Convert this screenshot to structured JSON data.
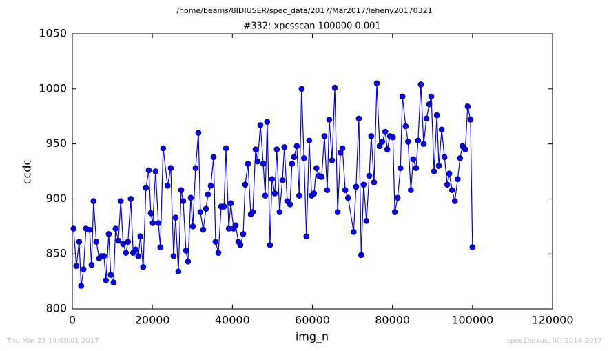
{
  "chart_data": {
    "type": "line",
    "suptitle": "/home/beams/8IDIUSER/spec_data/2017/Mar2017/leheny20170321",
    "title": "#332: xpcsscan 100000 0.001",
    "xlabel": "img_n",
    "ylabel": "ccdc",
    "footer_left": "Thu Mar 23 14:09:01 2017",
    "footer_right": "spec2nexus, (C) 2014-2017",
    "xlim": [
      0,
      120000
    ],
    "xticks": [
      0,
      20000,
      40000,
      60000,
      80000,
      100000,
      120000
    ],
    "ylim": [
      800,
      1050
    ],
    "yticks": [
      800,
      850,
      900,
      950,
      1000,
      1050
    ],
    "grid": false,
    "marker": "circle",
    "series": [
      {
        "color": "#0000ff",
        "x": [
          300,
          1000,
          1700,
          2200,
          2800,
          3400,
          4300,
          4800,
          5300,
          6000,
          6700,
          7200,
          7900,
          8400,
          9100,
          9600,
          10300,
          10800,
          11500,
          12100,
          12700,
          13400,
          13900,
          14600,
          15200,
          15800,
          16500,
          17000,
          17700,
          18400,
          19100,
          19600,
          20100,
          20800,
          21500,
          22000,
          22700,
          23800,
          24600,
          25300,
          25800,
          26500,
          27200,
          27700,
          28400,
          28900,
          29600,
          30100,
          30800,
          31500,
          32000,
          32700,
          33400,
          33900,
          34600,
          35300,
          35800,
          36500,
          37200,
          37900,
          38400,
          39100,
          39600,
          40300,
          40800,
          41500,
          42000,
          42700,
          43200,
          43900,
          44600,
          45100,
          45800,
          46300,
          47000,
          47700,
          48200,
          48700,
          49400,
          49900,
          50600,
          51100,
          51800,
          52500,
          53000,
          53700,
          54400,
          54900,
          55400,
          56100,
          56700,
          57300,
          57900,
          58500,
          59200,
          59800,
          60400,
          61000,
          61600,
          62300,
          63000,
          63700,
          64200,
          64900,
          65600,
          66300,
          67000,
          67500,
          68200,
          68900,
          70300,
          70900,
          71600,
          72200,
          72800,
          73500,
          74200,
          74700,
          75400,
          76100,
          76800,
          77500,
          78200,
          78700,
          79400,
          80100,
          80600,
          81300,
          82000,
          82500,
          83300,
          83900,
          84600,
          85200,
          85900,
          86400,
          87100,
          87800,
          88500,
          89200,
          89700,
          90400,
          91100,
          91600,
          92300,
          93000,
          93700,
          94200,
          94900,
          95600,
          96300,
          96900,
          97500,
          98200,
          98800,
          99500,
          100000
        ],
        "values": [
          873,
          839,
          861,
          821,
          836,
          873,
          872,
          840,
          898,
          861,
          846,
          848,
          848,
          826,
          868,
          831,
          824,
          873,
          862,
          898,
          859,
          851,
          861,
          900,
          851,
          854,
          848,
          866,
          838,
          910,
          926,
          887,
          878,
          925,
          878,
          856,
          946,
          912,
          928,
          848,
          883,
          834,
          908,
          898,
          853,
          843,
          901,
          875,
          928,
          960,
          888,
          872,
          891,
          904,
          912,
          938,
          861,
          851,
          893,
          893,
          946,
          873,
          896,
          873,
          876,
          861,
          858,
          868,
          913,
          932,
          886,
          888,
          945,
          934,
          967,
          932,
          903,
          970,
          858,
          918,
          905,
          945,
          888,
          917,
          947,
          898,
          895,
          932,
          938,
          948,
          903,
          1000,
          937,
          866,
          953,
          903,
          905,
          928,
          921,
          920,
          957,
          908,
          972,
          935,
          1001,
          888,
          942,
          946,
          908,
          901,
          870,
          911,
          973,
          849,
          913,
          880,
          921,
          957,
          915,
          1005,
          948,
          952,
          961,
          945,
          957,
          956,
          888,
          901,
          928,
          993,
          966,
          952,
          908,
          936,
          928,
          953,
          1004,
          950,
          973,
          986,
          993,
          925,
          976,
          930,
          963,
          938,
          913,
          923,
          908,
          898,
          918,
          937,
          948,
          945,
          984,
          972,
          856
        ]
      }
    ]
  }
}
